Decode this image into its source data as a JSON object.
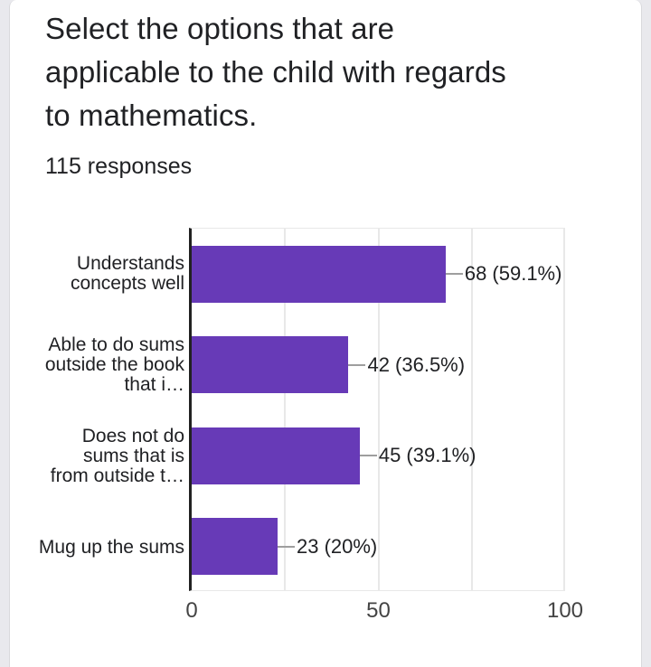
{
  "question": {
    "title": "Select the options that are applicable to the child with regards to mathematics.",
    "responses_count": "115 responses"
  },
  "chart_data": {
    "type": "bar",
    "orientation": "horizontal",
    "title": "Select the options that are applicable to the child with regards to mathematics.",
    "subtitle": "115 responses",
    "categories": [
      "Understands concepts well",
      "Able to do sums outside the book that i…",
      "Does not do sums that is from outside t…",
      "Mug up the sums"
    ],
    "category_lines": [
      [
        "Understands",
        "concepts well"
      ],
      [
        "Able to do sums",
        "outside the book",
        "that i…"
      ],
      [
        "Does not do",
        "sums that is",
        "from outside t…"
      ],
      [
        "Mug up the sums"
      ]
    ],
    "values": [
      68,
      42,
      45,
      23
    ],
    "percentages": [
      59.1,
      36.5,
      39.1,
      20
    ],
    "value_labels": [
      "68 (59.1%)",
      "42 (36.5%)",
      "45 (39.1%)",
      "23 (20%)"
    ],
    "xlim": [
      0,
      100
    ],
    "xticks": [
      "0",
      "50",
      "100"
    ],
    "gridline_step": 25,
    "grid": true,
    "legend": "none",
    "xlabel": "",
    "ylabel": ""
  },
  "colors": {
    "bar": "#673ab7",
    "axis": "#212121",
    "grid": "#e8e8e8",
    "leader": "#9e9e9e",
    "text": "#202124",
    "tick": "#444444",
    "page_bg": "#e9e9ed",
    "card_border": "#d9d9dd"
  }
}
